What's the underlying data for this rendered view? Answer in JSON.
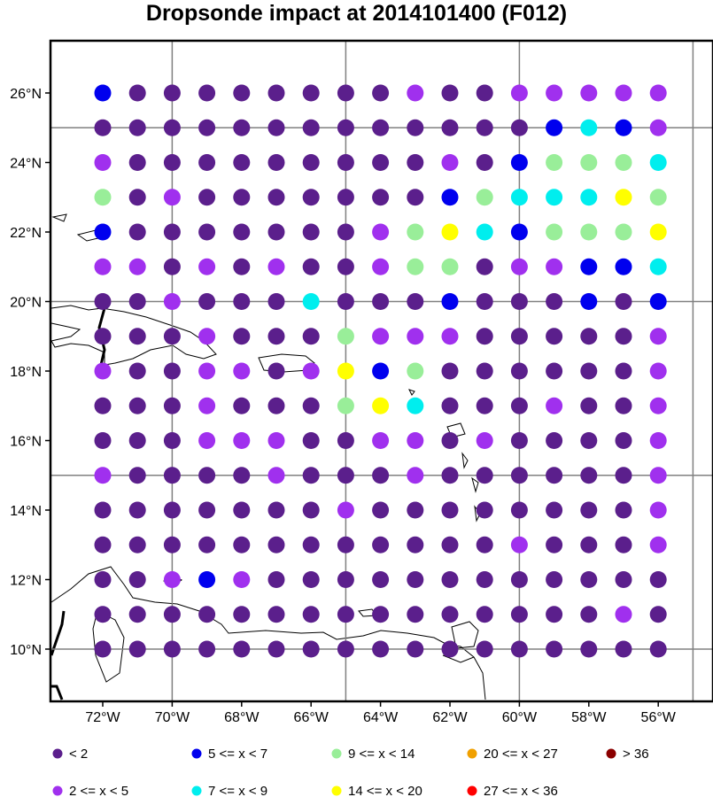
{
  "title": "Dropsonde impact at 2014101400 (F012)",
  "lon_ticks": [
    "72°W",
    "70°W",
    "68°W",
    "66°W",
    "64°W",
    "62°W",
    "60°W",
    "58°W",
    "56°W"
  ],
  "lat_ticks": [
    "26°N",
    "24°N",
    "22°N",
    "20°N",
    "18°N",
    "16°N",
    "14°N",
    "12°N",
    "10°N"
  ],
  "legend": [
    {
      "label": "<  2",
      "color": "#5b1f8c"
    },
    {
      "label": "5 <= x <  7",
      "color": "#0000ee"
    },
    {
      "label": "9 <= x < 14",
      "color": "#99ee99"
    },
    {
      "label": "20 <= x < 27",
      "color": "#f0a000"
    },
    {
      "label": "> 36",
      "color": "#8b0000"
    },
    {
      "label": "2 <= x <  5",
      "color": "#a030ee"
    },
    {
      "label": "7 <= x <  9",
      "color": "#00eeee"
    },
    {
      "label": "14 <= x < 20",
      "color": "#ffff00"
    },
    {
      "label": "27 <= x < 36",
      "color": "#ff0000"
    }
  ],
  "grid": {
    "lons": [
      -72,
      -71,
      -70,
      -69,
      -68,
      -67,
      -66,
      -65,
      -64,
      -63,
      -62,
      -61,
      -60,
      -59,
      -58,
      -57,
      -56
    ],
    "lats": [
      26,
      25,
      24,
      23,
      22,
      21,
      20,
      19,
      18,
      17,
      16,
      15,
      14,
      13,
      12,
      11,
      10
    ],
    "rows": [
      "PDDDDDDDDLDDLLLLL",
      "DDDDDDDDDDDDDPCPL",
      "LDDDDDDDDDLDPGGGC",
      "GDLDDDDDDDPGCCCYG",
      "PDDDDDDDLGYCPGGGY",
      "LLDLDLDDLGGDLLPPC",
      "DDLDDDCDDDPDDDPDP",
      "DDDLDDDGLLLDDDDDL",
      "LDDLLDLYPGDDDDDDL",
      "DDDLDDDGYCDDDLDDL",
      "DDDLLLDDLLDLDDDDL",
      "LDDDDLDDDLDDDDDDL",
      "DDDDDDDLDDDDDDDDL",
      "DDDDDDDDDDDDLDDDL",
      "DDLPLDDDDDDDDDDDD",
      "DDDDDDDDDDDDDDDLD",
      "DDDDDDDDDDDDDDDDD"
    ],
    "codes": {
      "D": "#5b1f8c",
      "L": "#a030ee",
      "P": "#0000ee",
      "C": "#00eeee",
      "G": "#99ee99",
      "Y": "#ffff00"
    }
  }
}
